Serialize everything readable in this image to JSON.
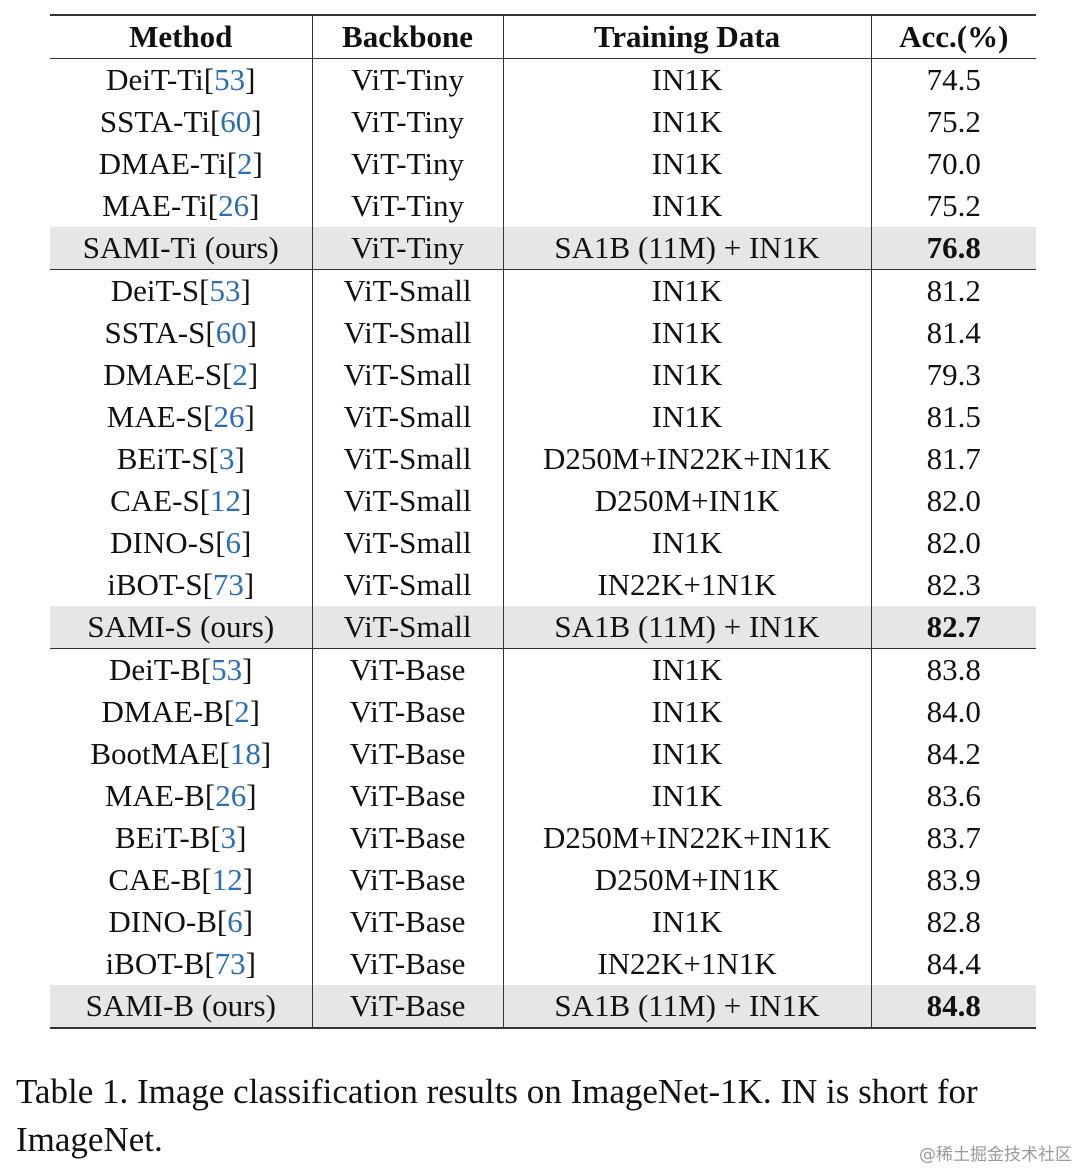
{
  "table": {
    "header": [
      "Method",
      "Backbone",
      "Training Data",
      "Acc.(%)"
    ],
    "groups": [
      [
        {
          "method": "DeiT-Ti",
          "cite": "[53]",
          "backbone": "ViT-Tiny",
          "data": "IN1K",
          "acc": "74.5"
        },
        {
          "method": "SSTA-Ti",
          "cite": "[60]",
          "backbone": "ViT-Tiny",
          "data": "IN1K",
          "acc": "75.2"
        },
        {
          "method": "DMAE-Ti",
          "cite": "[2]",
          "backbone": "ViT-Tiny",
          "data": "IN1K",
          "acc": "70.0"
        },
        {
          "method": "MAE-Ti",
          "cite": "[26]",
          "backbone": "ViT-Tiny",
          "data": "IN1K",
          "acc": "75.2"
        },
        {
          "method": "SAMI-Ti (ours)",
          "backbone": "ViT-Tiny",
          "data": "SA1B (11M) + IN1K",
          "acc": "76.8",
          "ours": true
        }
      ],
      [
        {
          "method": "DeiT-S",
          "cite": "[53]",
          "backbone": "ViT-Small",
          "data": "IN1K",
          "acc": "81.2"
        },
        {
          "method": "SSTA-S",
          "cite": "[60]",
          "backbone": "ViT-Small",
          "data": "IN1K",
          "acc": "81.4"
        },
        {
          "method": "DMAE-S",
          "cite": "[2]",
          "backbone": "ViT-Small",
          "data": "IN1K",
          "acc": "79.3"
        },
        {
          "method": "MAE-S",
          "cite": "[26]",
          "backbone": "ViT-Small",
          "data": "IN1K",
          "acc": "81.5"
        },
        {
          "method": "BEiT-S",
          "cite": "[3]",
          "backbone": "ViT-Small",
          "data": "D250M+IN22K+IN1K",
          "acc": "81.7"
        },
        {
          "method": "CAE-S",
          "cite": "[12]",
          "backbone": "ViT-Small",
          "data": "D250M+IN1K",
          "acc": "82.0"
        },
        {
          "method": "DINO-S",
          "cite": "[6]",
          "backbone": "ViT-Small",
          "data": "IN1K",
          "acc": "82.0"
        },
        {
          "method": "iBOT-S",
          "cite": "[73]",
          "backbone": "ViT-Small",
          "data": "IN22K+1N1K",
          "acc": "82.3"
        },
        {
          "method": "SAMI-S (ours)",
          "backbone": "ViT-Small",
          "data": "SA1B (11M) + IN1K",
          "acc": "82.7",
          "ours": true
        }
      ],
      [
        {
          "method": "DeiT-B",
          "cite": "[53]",
          "backbone": "ViT-Base",
          "data": "IN1K",
          "acc": "83.8"
        },
        {
          "method": "DMAE-B",
          "cite": "[2]",
          "backbone": "ViT-Base",
          "data": "IN1K",
          "acc": "84.0"
        },
        {
          "method": "BootMAE",
          "cite": "[18]",
          "backbone": "ViT-Base",
          "data": "IN1K",
          "acc": "84.2"
        },
        {
          "method": "MAE-B",
          "cite": "[26]",
          "backbone": "ViT-Base",
          "data": "IN1K",
          "acc": "83.6"
        },
        {
          "method": "BEiT-B",
          "cite": "[3]",
          "backbone": "ViT-Base",
          "data": "D250M+IN22K+IN1K",
          "acc": "83.7"
        },
        {
          "method": "CAE-B",
          "cite": "[12]",
          "backbone": "ViT-Base",
          "data": "D250M+IN1K",
          "acc": "83.9"
        },
        {
          "method": "DINO-B",
          "cite": "[6]",
          "backbone": "ViT-Base",
          "data": "IN1K",
          "acc": "82.8"
        },
        {
          "method": "iBOT-B",
          "cite": "[73]",
          "backbone": "ViT-Base",
          "data": "IN22K+1N1K",
          "acc": "84.4"
        },
        {
          "method": "SAMI-B (ours)",
          "backbone": "ViT-Base",
          "data": "SA1B (11M) + IN1K",
          "acc": "84.8",
          "ours": true
        }
      ]
    ]
  },
  "caption": "Table 1. Image classification results on ImageNet-1K. IN is short for ImageNet.",
  "watermark": "@稀土掘金技术社区"
}
